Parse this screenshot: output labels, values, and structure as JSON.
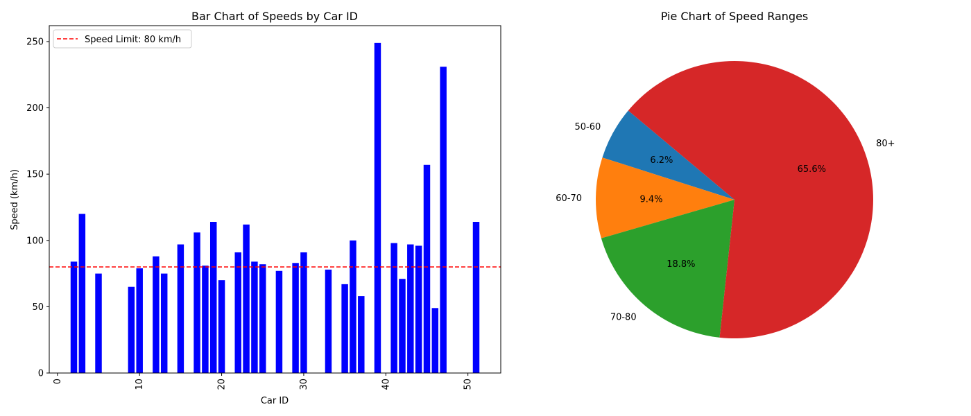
{
  "chart_data": [
    {
      "type": "bar",
      "title": "Bar Chart of Speeds by Car ID",
      "xlabel": "Car ID",
      "ylabel": "Speed (km/h)",
      "xlim": [
        -1,
        54
      ],
      "ylim": [
        0,
        262
      ],
      "xticks": [
        0,
        10,
        20,
        30,
        40,
        50
      ],
      "yticks": [
        0,
        50,
        100,
        150,
        200,
        250
      ],
      "bar_color": "#0000ff",
      "grid": false,
      "legend": {
        "position": "top-left",
        "entries": [
          {
            "label": "Speed Limit: 80 km/h",
            "color": "#ff0000",
            "style": "dashed"
          }
        ]
      },
      "reference_line": {
        "y": 80,
        "color": "#ff0000",
        "style": "dashed"
      },
      "x": [
        2,
        3,
        5,
        9,
        10,
        12,
        13,
        15,
        17,
        18,
        19,
        20,
        22,
        23,
        24,
        25,
        27,
        29,
        30,
        33,
        35,
        36,
        37,
        39,
        41,
        42,
        43,
        44,
        45,
        46,
        47,
        51
      ],
      "values": [
        84,
        120,
        75,
        65,
        79,
        88,
        75,
        97,
        106,
        81,
        114,
        70,
        91,
        112,
        84,
        82,
        77,
        83,
        91,
        78,
        67,
        100,
        58,
        249,
        98,
        71,
        97,
        96,
        157,
        49,
        231,
        114
      ]
    },
    {
      "type": "pie",
      "title": "Pie Chart of Speed Ranges",
      "start_angle": 140,
      "labels": [
        "50-60",
        "60-70",
        "70-80",
        "80+"
      ],
      "values": [
        6.2,
        9.4,
        18.8,
        65.6
      ],
      "value_labels": [
        "6.2%",
        "9.4%",
        "18.8%",
        "65.6%"
      ],
      "colors": [
        "#1f77b4",
        "#ff7f0e",
        "#2ca02c",
        "#d62728"
      ]
    }
  ]
}
